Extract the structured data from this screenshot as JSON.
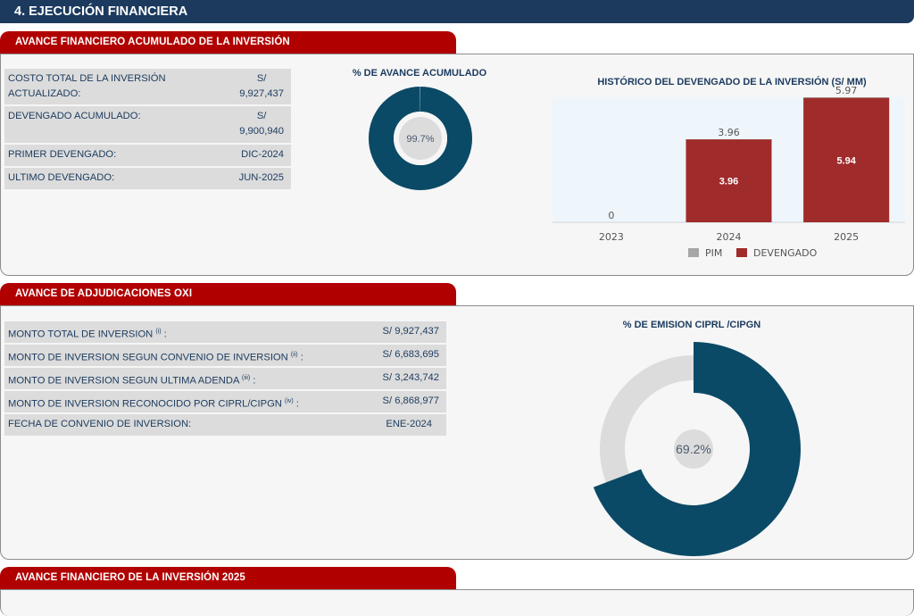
{
  "header": {
    "title": "4. EJECUCIÓN FINANCIERA"
  },
  "section1": {
    "tab": "AVANCE FINANCIERO ACUMULADO DE LA INVERSIÓN",
    "rows": [
      {
        "label": "COSTO TOTAL DE LA INVERSIÓN ACTUALIZADO:",
        "value_currency": "S/",
        "value": "9,927,437"
      },
      {
        "label": "DEVENGADO ACUMULADO:",
        "value_currency": "S/",
        "value": "9,900,940"
      },
      {
        "label": "PRIMER DEVENGADO:",
        "value": "DIC-2024"
      },
      {
        "label": "ULTIMO DEVENGADO:",
        "value": "JUN-2025"
      }
    ],
    "donut": {
      "title": "% DE AVANCE ACUMULADO",
      "label": "99.7%",
      "percent": 99.7,
      "color": "#0b4a66",
      "rest_color": "#dcdcdc"
    }
  },
  "chart_data": {
    "type": "bar",
    "title": "HISTÓRICO DEL DEVENGADO DE LA INVERSIÓN (S/ MM)",
    "categories": [
      "2023",
      "2024",
      "2025"
    ],
    "series": [
      {
        "name": "PIM",
        "values": [
          0,
          3.96,
          5.97
        ],
        "color": "#a6a6a6"
      },
      {
        "name": "DEVENGADO",
        "values": [
          0,
          3.96,
          5.94
        ],
        "color": "#a02b2b"
      }
    ],
    "pim_labels": [
      "0",
      "3.96",
      "5.97"
    ],
    "devengado_labels": [
      "",
      "3.96",
      "5.94"
    ],
    "ylim": [
      0,
      5.97
    ],
    "legend": "bottom",
    "grid": false
  },
  "section2": {
    "tab": "AVANCE DE ADJUDICACIONES OXI",
    "rows": [
      {
        "label": "MONTO TOTAL DE INVERSION",
        "sup": "(i)",
        "value": "S/ 9,927,437"
      },
      {
        "label": "MONTO DE INVERSION SEGUN CONVENIO DE INVERSION",
        "sup": "(ii)",
        "value": "S/ 6,683,695"
      },
      {
        "label": "MONTO DE INVERSION SEGUN ULTIMA ADENDA",
        "sup": "(iii)",
        "value": "S/ 3,243,742"
      },
      {
        "label": "MONTO DE INVERSION RECONOCIDO POR CIPRL/CIPGN",
        "sup": "(iv)",
        "value": "S/ 6,868,977"
      },
      {
        "label": "FECHA DE CONVENIO DE INVERSION:",
        "sup": "",
        "value": "ENE-2024"
      }
    ],
    "donut": {
      "title": "% DE EMISION CIPRL /CIPGN",
      "label": "69.2%",
      "percent": 69.2,
      "color": "#0b4a66",
      "rest_color": "#dcdcdc"
    }
  },
  "section3": {
    "tab": "AVANCE FINANCIERO DE LA INVERSIÓN 2025"
  }
}
